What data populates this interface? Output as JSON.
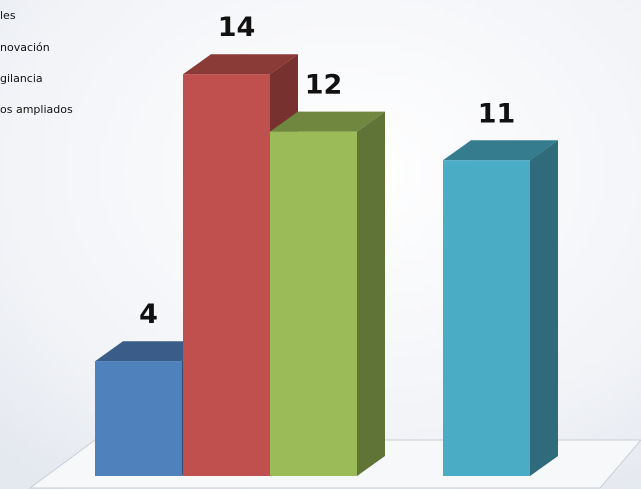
{
  "chart_data": {
    "type": "bar",
    "style": "3d-clustered-column",
    "legend_position": "top-left",
    "legend": [
      "les",
      "novación",
      "gilancia",
      "os ampliados"
    ],
    "series": [
      {
        "name": "les",
        "values": [
          4
        ],
        "color": "#4f81bd"
      },
      {
        "name": "novación",
        "values": [
          14
        ],
        "color": "#c0504d"
      },
      {
        "name": "gilancia",
        "values": [
          12
        ],
        "color": "#9bbb59"
      },
      {
        "name": "os ampliados",
        "values": [
          11
        ],
        "color": "#4bacc6"
      }
    ],
    "data_labels": [
      "4",
      "14",
      "12",
      "11"
    ],
    "ylim": [
      0,
      16
    ],
    "grid": false
  }
}
